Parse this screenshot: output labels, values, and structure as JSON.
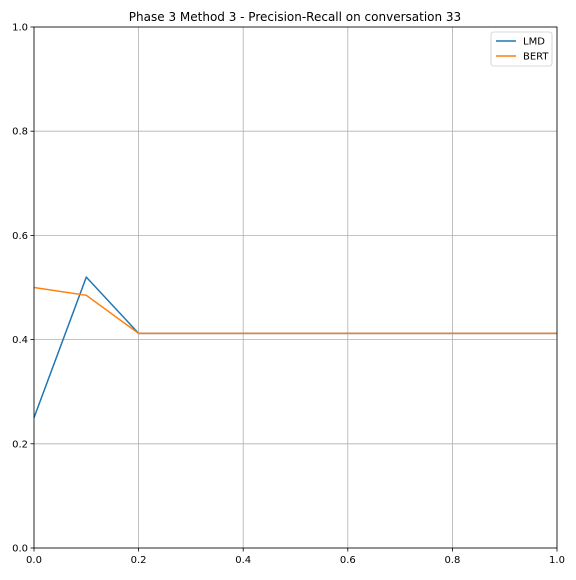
{
  "chart_data": {
    "type": "line",
    "title": "Phase 3 Method 3 - Precision-Recall on conversation 33",
    "xlabel": "",
    "ylabel": "",
    "xlim": [
      0,
      1
    ],
    "ylim": [
      0,
      1
    ],
    "xticks": [
      "0.0",
      "0.2",
      "0.4",
      "0.6",
      "0.8",
      "1.0"
    ],
    "yticks": [
      "0.0",
      "0.2",
      "0.4",
      "0.6",
      "0.8",
      "1.0"
    ],
    "grid": true,
    "legend_position": "top-right",
    "series": [
      {
        "name": "LMD",
        "color": "#1f77b4",
        "x": [
          0.0,
          0.1,
          0.2,
          0.3,
          0.4,
          0.5,
          0.6,
          0.7,
          0.8,
          0.9,
          1.0
        ],
        "y": [
          0.25,
          0.52,
          0.412,
          0.412,
          0.412,
          0.412,
          0.412,
          0.412,
          0.412,
          0.412,
          0.412
        ]
      },
      {
        "name": "BERT",
        "color": "#ff7f0e",
        "x": [
          0.0,
          0.1,
          0.2,
          0.3,
          0.4,
          0.5,
          0.6,
          0.7,
          0.8,
          0.9,
          1.0
        ],
        "y": [
          0.5,
          0.485,
          0.412,
          0.412,
          0.412,
          0.412,
          0.412,
          0.412,
          0.412,
          0.412,
          0.412
        ]
      }
    ]
  }
}
